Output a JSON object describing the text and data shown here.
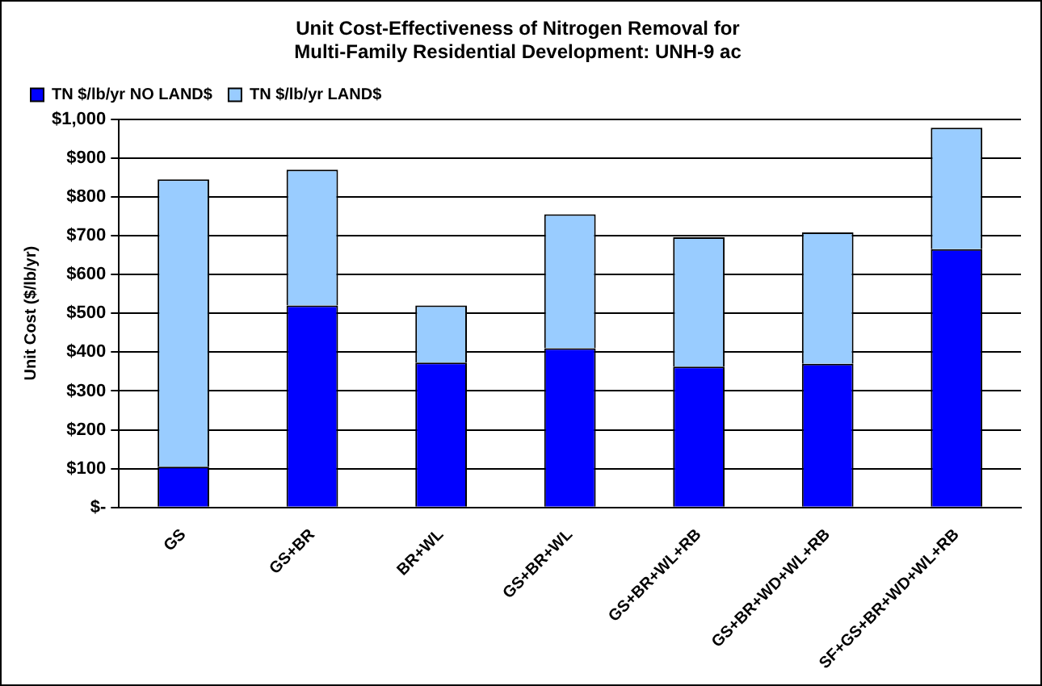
{
  "chart_data": {
    "type": "bar",
    "title": "Unit Cost-Effectiveness of Nitrogen Removal for\nMulti-Family Residential Development: UNH-9 ac",
    "ylabel": "Unit Cost ($/lb/yr)",
    "categories": [
      "GS",
      "GS+BR",
      "BR+WL",
      "GS+BR+WL",
      "GS+BR+WL+RB",
      "GS+BR+WD+WL+RB",
      "SF+GS+BR+WD+WL+RB"
    ],
    "stacked": true,
    "series": [
      {
        "name": "TN $/lb/yr NO LAND$",
        "color": "#0000ff",
        "values": [
          105,
          520,
          373,
          410,
          363,
          370,
          665
        ]
      },
      {
        "name": "TN $/lb/yr LAND$",
        "color": "#99ccff",
        "values": [
          740,
          350,
          147,
          345,
          333,
          338,
          313
        ]
      }
    ],
    "ylim": [
      0,
      1000
    ],
    "yticks": [
      {
        "value": 0,
        "label": "$-"
      },
      {
        "value": 100,
        "label": "$100"
      },
      {
        "value": 200,
        "label": "$200"
      },
      {
        "value": 300,
        "label": "$300"
      },
      {
        "value": 400,
        "label": "$400"
      },
      {
        "value": 500,
        "label": "$500"
      },
      {
        "value": 600,
        "label": "$600"
      },
      {
        "value": 700,
        "label": "$700"
      },
      {
        "value": 800,
        "label": "$800"
      },
      {
        "value": 900,
        "label": "$900"
      },
      {
        "value": 1000,
        "label": "$1,000"
      }
    ],
    "grid": "y",
    "legend": "top left"
  }
}
